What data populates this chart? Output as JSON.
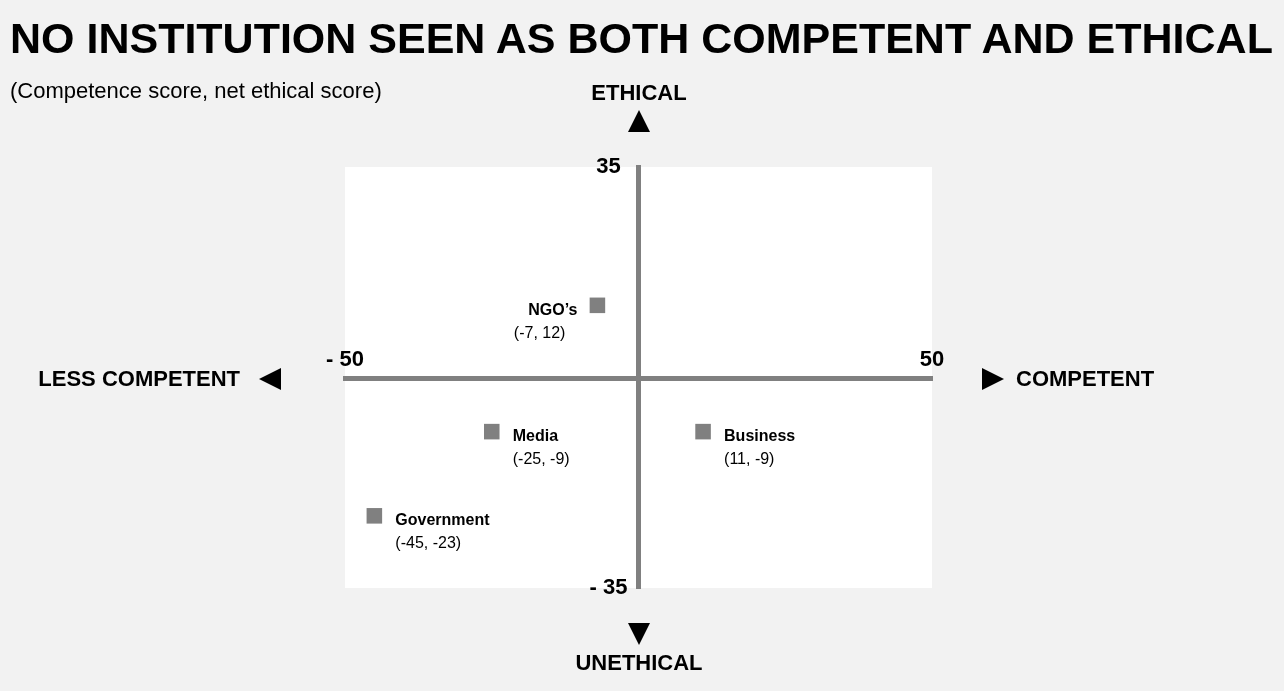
{
  "chart_data": {
    "type": "scatter",
    "title": "NO INSTITUTION SEEN AS BOTH COMPETENT AND ETHICAL",
    "subtitle": "(Competence score, net ethical score)",
    "xlabel": "COMPETENT",
    "ylabel": "ETHICAL",
    "annotations": [
      "LESS COMPETENT",
      "UNETHICAL"
    ],
    "xlim": [
      -50,
      50
    ],
    "ylim": [
      -35,
      35
    ],
    "xticks": [
      {
        "value": -50,
        "label": "- 50"
      },
      50
    ],
    "yticks": [
      {
        "value": -35,
        "label": "- 35"
      },
      35
    ],
    "series": [
      {
        "name": "NGO’s",
        "color": "#808080",
        "x": [
          -7
        ],
        "values": [
          12
        ],
        "value_labels": [
          "(-7, 12)"
        ]
      },
      {
        "name": "Media",
        "color": "#808080",
        "x": [
          -25
        ],
        "values": [
          -9
        ],
        "value_labels": [
          "(-25, -9)"
        ]
      },
      {
        "name": "Business",
        "color": "#808080",
        "x": [
          11
        ],
        "values": [
          -9
        ],
        "value_labels": [
          "(11, -9)"
        ]
      },
      {
        "name": "Government",
        "color": "#808080",
        "x": [
          -45
        ],
        "values": [
          -23
        ],
        "value_labels": [
          "(-45, -23)"
        ]
      }
    ],
    "marker": "square",
    "grid": false,
    "legend": false
  }
}
